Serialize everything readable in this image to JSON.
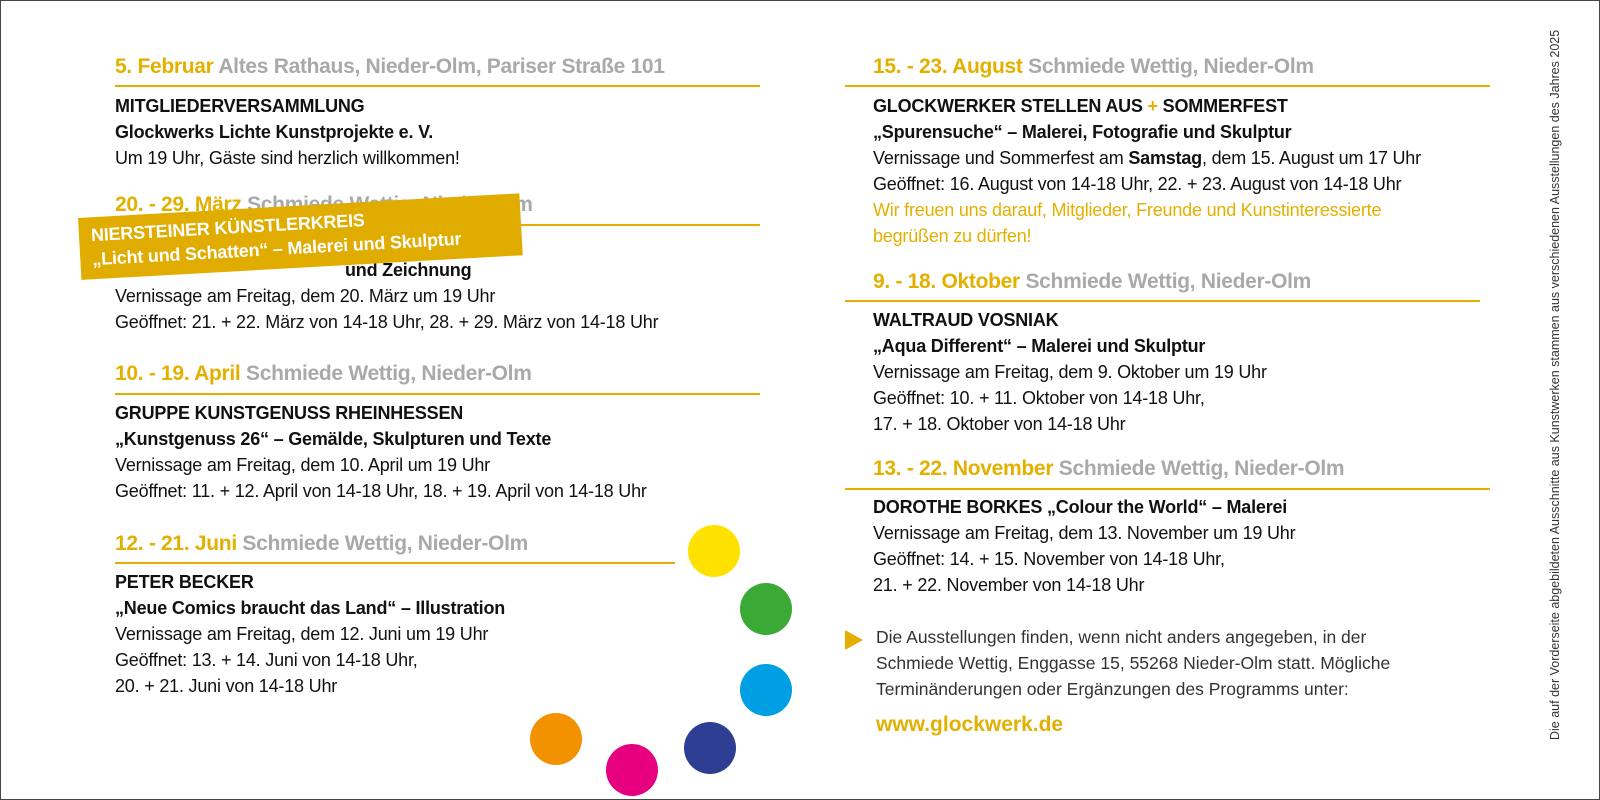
{
  "colors": {
    "accent": "#e3b000",
    "place": "#a9a9a9"
  },
  "left": [
    {
      "date": "5. Februar",
      "place": "Altes Rathaus, Nieder-Olm, Pariser Straße 101",
      "lines": [
        "MITGLIEDERVERSAMMLUNG",
        "Glockwerks Lichte Kunstprojekte e. V.",
        "Um 19 Uhr, Gäste sind herzlich willkommen!"
      ]
    },
    {
      "date": "20. - 29. März",
      "place": "Schmiede Wettig, Nieder-Olm",
      "hidden": "und Zeichnung",
      "banner": [
        "NIERSTEINER KÜNSTLERKREIS",
        "„Licht und Schatten“ – Malerei und Skulptur"
      ],
      "lines": [
        "Vernissage am Freitag, dem 20. März um 19 Uhr",
        "Geöffnet: 21. + 22. März von 14-18 Uhr, 28. + 29. März von 14-18 Uhr"
      ]
    },
    {
      "date": "10. - 19. April",
      "place": "Schmiede Wettig, Nieder-Olm",
      "lines": [
        "GRUPPE KUNSTGENUSS RHEINHESSEN",
        "„Kunstgenuss 26“ – Gemälde, Skulpturen und Texte",
        "Vernissage am Freitag, dem 10. April um 19 Uhr",
        "Geöffnet: 11. + 12. April von 14-18 Uhr, 18. + 19. April von 14-18 Uhr"
      ]
    },
    {
      "date": "12. - 21. Juni",
      "place": "Schmiede Wettig, Nieder-Olm",
      "lines": [
        "PETER BECKER",
        "„Neue Comics braucht das Land“ – Illustration",
        "Vernissage am Freitag, dem 12. Juni um 19 Uhr",
        "Geöffnet: 13. + 14. Juni von 14-18 Uhr,",
        "20. + 21. Juni von 14-18 Uhr"
      ]
    }
  ],
  "right": [
    {
      "date": "15. - 23. August",
      "place": "Schmiede Wettig, Nieder-Olm",
      "title_a": "GLOCKWERKER STELLEN AUS",
      "plus": "+",
      "title_b": "SOMMERFEST",
      "lines": [
        "„Spurensuche“ – Malerei, Fotografie und Skulptur"
      ],
      "vern_a": "Vernissage und Sommerfest am ",
      "vern_b": "Samstag",
      "vern_c": ", dem 15. August um 17 Uhr",
      "open": "Geöffnet: 16. August von 14-18 Uhr, 22. + 23. August von 14-18 Uhr",
      "gold": [
        "Wir freuen uns darauf, Mitglieder, Freunde und Kunstinteressierte",
        "begrüßen zu dürfen!"
      ]
    },
    {
      "date": "9. - 18. Oktober",
      "place": "Schmiede Wettig, Nieder-Olm",
      "lines": [
        "WALTRAUD VOSNIAK",
        "„Aqua Different“ – Malerei und Skulptur",
        "Vernissage am Freitag, dem 9. Oktober um 19 Uhr",
        "Geöffnet: 10. + 11. Oktober von 14-18 Uhr,",
        "17. + 18. Oktober von 14-18 Uhr"
      ]
    },
    {
      "date": "13. - 22. November",
      "place": "Schmiede Wettig, Nieder-Olm",
      "lines": [
        "DOROTHE BORKES „Colour the World“ – Malerei",
        "Vernissage am Freitag, dem 13. November um 19 Uhr",
        "Geöffnet: 14. + 15. November von 14-18 Uhr,",
        "21. + 22. November von 14-18 Uhr"
      ]
    }
  ],
  "note": [
    "Die Ausstellungen finden, wenn nicht anders angegeben, in der",
    "Schmiede Wettig, Enggasse 15, 55268 Nieder-Olm statt. Mögliche",
    "Terminänderungen oder Ergänzungen des Programms unter:"
  ],
  "url": "www.glockwerk.de",
  "side_note": "Die auf der Vorderseite abgebildeten Ausschnitte aus Kunstwerken stammen aus verschiedenen Ausstellungen des Jahres 2025",
  "dots": [
    "#ffe100",
    "#3aa935",
    "#009fe3",
    "#2e3f93",
    "#e6007e",
    "#f39200"
  ]
}
